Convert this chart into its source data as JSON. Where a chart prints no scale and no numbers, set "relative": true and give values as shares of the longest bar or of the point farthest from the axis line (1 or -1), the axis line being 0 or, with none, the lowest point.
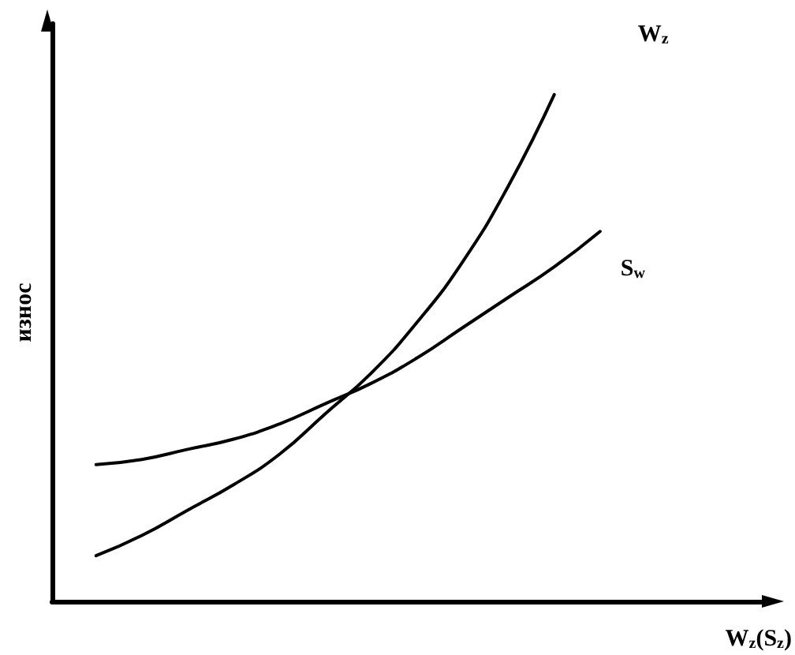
{
  "chart_data": {
    "type": "line",
    "relative": true,
    "xlabel": "W$_{z}$(S$_{z}$)",
    "ylabel": "износ",
    "categories": [
      null,
      null,
      null,
      null,
      null,
      null,
      null,
      null,
      null,
      null,
      null,
      null
    ],
    "series": [
      {
        "name": "W$_{z}$",
        "color": "#000000",
        "values": [
          0.09,
          0.13,
          0.18,
          0.23,
          0.29,
          0.37,
          0.45,
          0.55,
          0.67,
          0.82,
          1.0,
          null
        ]
      },
      {
        "name": "S$_{w}$",
        "color": "#000000",
        "values": [
          0.27,
          0.28,
          0.3,
          0.32,
          0.35,
          0.39,
          0.43,
          0.48,
          0.54,
          0.6,
          0.66,
          0.73
        ]
      }
    ]
  }
}
